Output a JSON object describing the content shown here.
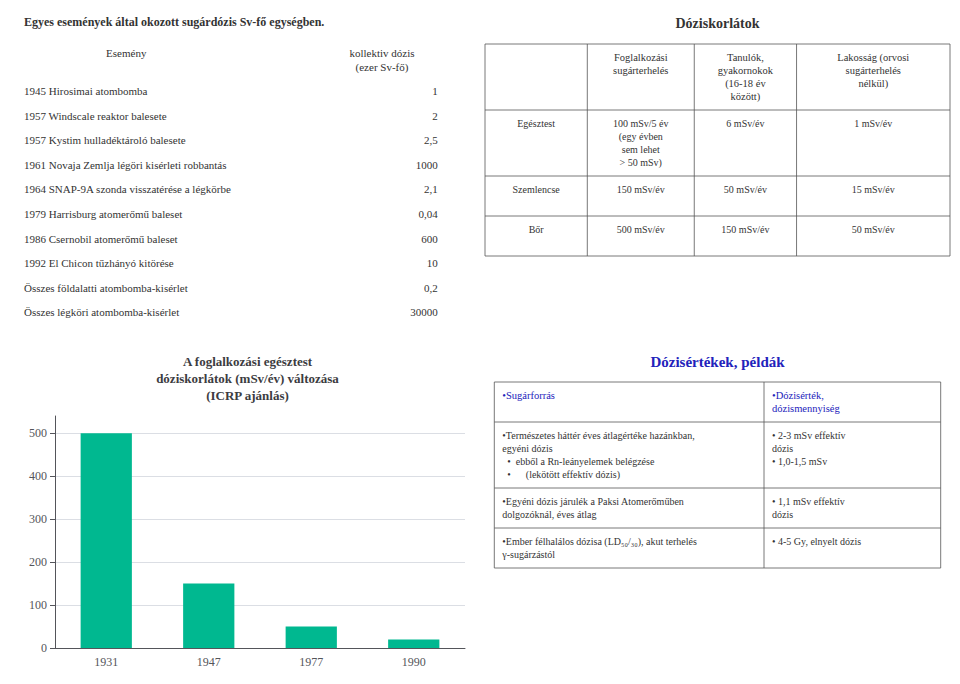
{
  "chart_data": [
    {
      "type": "table",
      "title": "Egyes események által okozott sugárdózis Sv-fő egységben.",
      "columns": [
        "Esemény",
        "kollektiv dózis\n(ezer Sv-fő)"
      ],
      "rows": [
        [
          "1945 Hirosimai atombomba",
          "1"
        ],
        [
          "1957 Windscale reaktor balesete",
          "2"
        ],
        [
          "1957 Kystim hulladéktároló balesete",
          "2,5"
        ],
        [
          "1961 Novaja Zemlja légöri kisérleti robbantás",
          "1000"
        ],
        [
          "1964 SNAP-9A szonda visszatérése a légkörbe",
          "2,1"
        ],
        [
          "1979 Harrisburg atomerőmű baleset",
          "0,04"
        ],
        [
          "1986 Csernobil atomerőmű baleset",
          "600"
        ],
        [
          "1992 El Chicon tűzhányó kitörése",
          "10"
        ],
        [
          "Összes földalatti atombomba-kisérlet",
          "0,2"
        ],
        [
          "Összes légköri atombomba-kisérlet",
          "30000"
        ]
      ]
    },
    {
      "type": "table",
      "title": "Dóziskorlátok",
      "columns": [
        "Foglalkozási\nsugárterhelés",
        "Tanulók,\ngyakornokok\n(16-18 év\nközött)",
        "Lakosság (orvosi\nsugárterhelés\nnélkül)"
      ],
      "rows": [
        [
          "Egésztest",
          "100 mSv/5 év\n(egy évben\nsem lehet\n> 50 mSv)",
          "6 mSv/év",
          "1 mSv/év"
        ],
        [
          "Szemlencse",
          "150 mSv/év",
          "50 mSv/év",
          "15 mSv/év"
        ],
        [
          "Bőr",
          "500 mSv/év",
          "150 mSv/év",
          "50 mSv/év"
        ]
      ]
    },
    {
      "type": "bar",
      "title": "A foglalkozási egésztest\ndóziskorlátok (mSv/év) változása\n(ICRP ajánlás)",
      "categories": [
        "1931",
        "1947",
        "1977",
        "1990"
      ],
      "values": [
        500,
        150,
        50,
        20
      ],
      "color": "#00b890",
      "ylim": [
        0,
        540
      ],
      "yticks": [
        0,
        100,
        200,
        300,
        400,
        500
      ],
      "grid": true
    },
    {
      "type": "table",
      "title": "Dózisértékek, példák",
      "color": "#2222bb",
      "columns": [
        "•Sugárforrás",
        "•Dózisérték,\ndózismennyiség"
      ],
      "rows": [
        [
          "•Természetes háttér éves átlagértéke hazánkban,\negyéni dózis\n  •  ebből a Rn-leányelemek belégzése\n  •      (lekötött effektív dózis)",
          "• 2-3 mSv effektív\ndózis\n• 1,0-1,5 mSv"
        ],
        [
          "•Egyéni dózis járulék a Paksi Atomerőműben\ndolgozóknál, éves átlag",
          "• 1,1 mSv effektív\ndózis"
        ],
        [
          "•Ember félhalálos dózisa (LD₅₀/₃₀), akut terhelés\nγ-sugárzástól",
          "• 4-5 Gy, elnyelt dózis"
        ]
      ]
    }
  ]
}
